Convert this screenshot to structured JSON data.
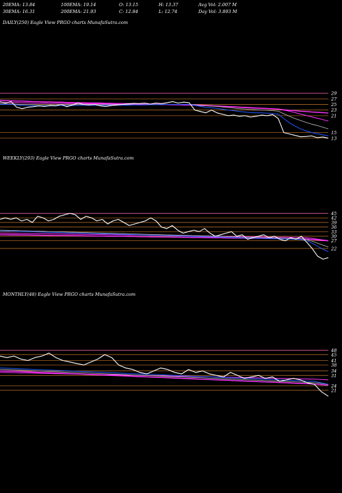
{
  "header": {
    "row1": [
      "20EMA: 13.84",
      "100EMA: 19.14",
      "O: 13.15",
      "H: 13.37",
      "Avg Vol: 2.007 M"
    ],
    "row2": [
      "30EMA: 16.31",
      "200EMA: 21.93",
      "C: 12.84",
      "L: 12.74",
      "Day Vol: 3.893 M"
    ]
  },
  "colors": {
    "price": "#ffffff",
    "ema_short": "#1f5cff",
    "ema_mid": "#ff33ff",
    "ema_long": "#c0c0c0",
    "level_line": "#c8782a",
    "level_pink": "#ff69b4"
  },
  "chart_data": [
    {
      "type": "line",
      "title": "DAILY(250) Eagle  View  PRGO charts MunafaSutra.com",
      "y_ticks": [
        "29",
        "27",
        "25",
        "23",
        "21",
        "15",
        "13"
      ],
      "series": [
        {
          "values": [
            26,
            25.5,
            26,
            24,
            23.5,
            24,
            24.2,
            24.5,
            24.3,
            24.6,
            24.5,
            25,
            24.2,
            24.8,
            25.5,
            25,
            24.8,
            25,
            24.5,
            24.3,
            24.6,
            24.8,
            25,
            25.2,
            25.4,
            25.3,
            25.5,
            25.1,
            25.5,
            25.3,
            25.6,
            26,
            25.5,
            25.8,
            25.6,
            23,
            22.5,
            22,
            23,
            22,
            21.5,
            21,
            21.2,
            20.8,
            21,
            20.5,
            20.8,
            21.2,
            21,
            21.4,
            20,
            15,
            14.5,
            14,
            13.5,
            13.6,
            13.8,
            13.2,
            13.4,
            13
          ]
        },
        {
          "values": [
            25,
            25,
            25,
            24.8,
            24.7,
            24.6,
            24.6,
            24.5,
            24.5,
            24.5,
            24.5,
            24.6,
            24.6,
            24.6,
            24.7,
            24.7,
            24.7,
            24.7,
            24.7,
            24.7,
            24.7,
            24.7,
            24.7,
            24.7,
            24.8,
            24.8,
            24.8,
            24.9,
            24.9,
            24.9,
            25,
            25,
            25,
            25,
            25,
            24.7,
            24.3,
            23.9,
            23.8,
            23.6,
            23.3,
            23,
            22.8,
            22.5,
            22.3,
            22.1,
            22,
            22,
            21.9,
            21.8,
            21.5,
            20,
            18.5,
            17.3,
            16.3,
            15.6,
            15,
            14.6,
            14.2,
            13.84
          ]
        },
        {
          "values": [
            25.3,
            25.2,
            25.2,
            25.1,
            25,
            25,
            24.9,
            24.9,
            24.9,
            24.9,
            24.9,
            24.9,
            24.9,
            24.9,
            24.9,
            24.9,
            24.9,
            24.9,
            24.9,
            24.9,
            24.9,
            24.9,
            24.9,
            24.9,
            24.9,
            24.9,
            24.9,
            25,
            25,
            25,
            25,
            25,
            25,
            25,
            25,
            24.9,
            24.7,
            24.5,
            24.4,
            24.3,
            24.1,
            23.9,
            23.7,
            23.5,
            23.4,
            23.2,
            23.1,
            23,
            22.9,
            22.8,
            22.6,
            21.7,
            20.8,
            20,
            19.3,
            18.6,
            18,
            17.5,
            16.9,
            16.31
          ]
        },
        {
          "values": [
            25.8,
            25.8,
            25.7,
            25.7,
            25.6,
            25.6,
            25.5,
            25.5,
            25.5,
            25.4,
            25.4,
            25.4,
            25.3,
            25.3,
            25.3,
            25.3,
            25.2,
            25.2,
            25.2,
            25.2,
            25.1,
            25.1,
            25.1,
            25.1,
            25,
            25,
            25,
            25,
            25,
            25,
            25,
            25,
            25,
            25,
            25,
            24.9,
            24.8,
            24.7,
            24.6,
            24.5,
            24.4,
            24.3,
            24.2,
            24.1,
            24,
            23.9,
            23.8,
            23.7,
            23.6,
            23.5,
            23.4,
            23,
            22.6,
            22.1,
            21.6,
            21.1,
            20.6,
            20.1,
            19.6,
            19.14
          ]
        },
        {
          "values": [
            26.5,
            26.4,
            26.3,
            26.2,
            26.2,
            26.1,
            26,
            26,
            25.9,
            25.9,
            25.8,
            25.8,
            25.7,
            25.7,
            25.6,
            25.6,
            25.5,
            25.5,
            25.5,
            25.4,
            25.4,
            25.3,
            25.3,
            25.3,
            25.2,
            25.2,
            25.1,
            25.1,
            25.1,
            25,
            25,
            24.9,
            24.9,
            24.8,
            24.8,
            24.7,
            24.6,
            24.6,
            24.5,
            24.4,
            24.3,
            24.2,
            24.1,
            24,
            23.9,
            23.8,
            23.7,
            23.6,
            23.5,
            23.4,
            23.3,
            23.1,
            22.9,
            22.8,
            22.6,
            22.5,
            22.3,
            22.2,
            22.1,
            21.93
          ]
        }
      ],
      "levels": [
        29,
        27,
        25,
        23,
        21,
        15,
        13
      ]
    },
    {
      "type": "line",
      "title": "WEEKLY(293) Eagle  View  PRGO charts MunafaSutra.com",
      "y_ticks": [
        "45",
        "42",
        "39",
        "36",
        "33",
        "30",
        "27",
        "22"
      ],
      "series": [
        {
          "values": [
            41,
            42,
            41,
            42,
            40,
            41,
            39,
            43,
            42,
            40,
            41,
            43,
            44,
            45,
            44,
            41,
            43,
            42,
            40,
            41,
            38,
            40,
            41,
            39,
            37,
            38,
            39,
            40,
            42,
            40,
            36,
            35,
            37,
            34,
            32,
            33,
            34,
            33,
            35,
            32,
            30,
            31,
            32,
            33,
            30,
            31,
            28,
            29,
            30,
            31,
            29,
            30,
            28,
            27,
            29,
            28,
            30,
            26,
            22,
            17,
            15,
            16
          ]
        },
        {
          "values": [
            33.5,
            33.4,
            33.3,
            33.2,
            33.1,
            33,
            32.9,
            32.8,
            32.7,
            32.6,
            32.5,
            32.4,
            32.3,
            32.2,
            32.1,
            32,
            31.9,
            31.8,
            31.7,
            31.6,
            31.5,
            31.4,
            31.3,
            31.2,
            31.1,
            31,
            30.9,
            30.8,
            30.7,
            30.6,
            30.5,
            30.4,
            30.3,
            30.2,
            30.1,
            30,
            29.9,
            29.8,
            29.7,
            29.6,
            29.5,
            29.4,
            29.3,
            29.2,
            29.1,
            29,
            28.9,
            28.8,
            28.7,
            28.6,
            28.5,
            28.4,
            28.3,
            28.2,
            28.1,
            28,
            27.8,
            27,
            25.5,
            23.5,
            21.5,
            20
          ]
        },
        {
          "values": [
            34,
            33.9,
            33.8,
            33.7,
            33.6,
            33.5,
            33.4,
            33.3,
            33.2,
            33.1,
            33,
            32.9,
            32.8,
            32.7,
            32.6,
            32.5,
            32.4,
            32.3,
            32.2,
            32.1,
            32,
            31.9,
            31.8,
            31.7,
            31.6,
            31.5,
            31.4,
            31.3,
            31.2,
            31.1,
            31,
            30.9,
            30.8,
            30.7,
            30.6,
            30.5,
            30.4,
            30.3,
            30.2,
            30.1,
            30,
            29.9,
            29.8,
            29.7,
            29.6,
            29.5,
            29.4,
            29.3,
            29.2,
            29.1,
            29,
            28.9,
            28.8,
            28.7,
            28.6,
            28.5,
            28.3,
            27.8,
            26.8,
            25.5,
            24.2,
            23
          ]
        },
        {
          "values": [
            32,
            32,
            31.9,
            31.9,
            31.8,
            31.8,
            31.7,
            31.7,
            31.6,
            31.6,
            31.5,
            31.5,
            31.4,
            31.4,
            31.3,
            31.3,
            31.2,
            31.2,
            31.1,
            31.1,
            31,
            31,
            30.9,
            30.9,
            30.8,
            30.8,
            30.7,
            30.7,
            30.6,
            30.6,
            30.5,
            30.5,
            30.4,
            30.4,
            30.3,
            30.3,
            30.2,
            30.2,
            30.1,
            30.1,
            30,
            30,
            29.9,
            29.9,
            29.8,
            29.8,
            29.7,
            29.7,
            29.6,
            29.6,
            29.5,
            29.5,
            29.4,
            29.4,
            29.3,
            29.3,
            29.2,
            29,
            28.6,
            28.1,
            27.6,
            27.2
          ]
        },
        {
          "values": [
            31,
            31,
            30.9,
            30.9,
            30.8,
            30.8,
            30.7,
            30.7,
            30.6,
            30.6,
            30.5,
            30.5,
            30.4,
            30.4,
            30.3,
            30.3,
            30.2,
            30.2,
            30.1,
            30.1,
            30,
            30,
            29.9,
            29.9,
            29.8,
            29.8,
            29.7,
            29.7,
            29.6,
            29.6,
            29.5,
            29.5,
            29.4,
            29.4,
            29.3,
            29.3,
            29.2,
            29.2,
            29.1,
            29.1,
            29,
            29,
            28.9,
            28.9,
            28.8,
            28.8,
            28.7,
            28.7,
            28.6,
            28.6,
            28.5,
            28.5,
            28.4,
            28.4,
            28.3,
            28.3,
            28.2,
            28.1,
            27.9,
            27.6,
            27.3,
            27
          ]
        }
      ],
      "levels": [
        45,
        42,
        39,
        36,
        33,
        30,
        27,
        22
      ]
    },
    {
      "type": "line",
      "title": "MONTHLY(48) Eagle  View  PRGO charts MunafaSutra.com",
      "y_ticks": [
        "48",
        "45",
        "41",
        "38",
        "34",
        "31",
        "24",
        "21"
      ],
      "series": [
        {
          "values": [
            44,
            43,
            44,
            42,
            41,
            43,
            44,
            46,
            43,
            41,
            40,
            39,
            38,
            40,
            42,
            45,
            43,
            38,
            36,
            35,
            33,
            32,
            34,
            36,
            35,
            33,
            32,
            35,
            33,
            34,
            32,
            31,
            30,
            33,
            31,
            29,
            30,
            31,
            29,
            30,
            27,
            28,
            29,
            28,
            26,
            25,
            20,
            17
          ]
        },
        {
          "values": [
            36,
            35.8,
            35.6,
            35.4,
            35.2,
            35,
            34.8,
            34.6,
            34.4,
            34.2,
            34,
            33.8,
            33.6,
            33.4,
            33.2,
            33,
            32.8,
            32.6,
            32.4,
            32.2,
            32,
            31.8,
            31.6,
            31.4,
            31.2,
            31,
            30.8,
            30.6,
            30.4,
            30.2,
            30,
            29.8,
            29.6,
            29.4,
            29.2,
            29,
            28.8,
            28.6,
            28.4,
            28.2,
            28,
            27.8,
            27.6,
            27.4,
            27.2,
            27,
            26,
            25
          ]
        },
        {
          "values": [
            35,
            34.9,
            34.7,
            34.5,
            34.3,
            34.1,
            33.9,
            33.7,
            33.5,
            33.3,
            33.1,
            32.9,
            32.7,
            32.5,
            32.3,
            32.1,
            31.9,
            31.7,
            31.5,
            31.3,
            31.1,
            30.9,
            30.7,
            30.5,
            30.3,
            30.1,
            29.9,
            29.7,
            29.5,
            29.3,
            29.1,
            28.9,
            28.7,
            28.5,
            28.3,
            28.1,
            27.9,
            27.7,
            27.5,
            27.3,
            27.1,
            26.9,
            26.7,
            26.5,
            26.3,
            26.1,
            25.6,
            25
          ]
        },
        {
          "values": [
            33,
            32.9,
            32.8,
            32.7,
            32.6,
            32.5,
            32.4,
            32.3,
            32.2,
            32.1,
            32,
            31.9,
            31.8,
            31.7,
            31.6,
            31.5,
            31.4,
            31.3,
            31.2,
            31.1,
            31,
            30.9,
            30.8,
            30.7,
            30.6,
            30.5,
            30.4,
            30.3,
            30.2,
            30.1,
            30,
            29.9,
            29.8,
            29.7,
            29.6,
            29.5,
            29.4,
            29.3,
            29.2,
            29.1,
            29,
            28.9,
            28.8,
            28.7,
            28.6,
            28.5,
            28.2,
            28
          ]
        },
        {
          "values": [
            34,
            33.9,
            33.8,
            33.6,
            33.4,
            33.2,
            33,
            32.8,
            32.6,
            32.4,
            32.2,
            32,
            31.8,
            31.6,
            31.4,
            31.2,
            31,
            30.8,
            30.6,
            30.4,
            30.2,
            30,
            29.8,
            29.6,
            29.4,
            29.2,
            29,
            28.8,
            28.6,
            28.4,
            28.2,
            28,
            27.8,
            27.6,
            27.4,
            27.2,
            27,
            26.8,
            26.6,
            26.4,
            26.2,
            26,
            25.8,
            25.6,
            25.4,
            25.2,
            24.8,
            24.5
          ]
        }
      ],
      "levels": [
        48,
        45,
        41,
        38,
        34,
        31,
        24,
        21
      ]
    }
  ]
}
